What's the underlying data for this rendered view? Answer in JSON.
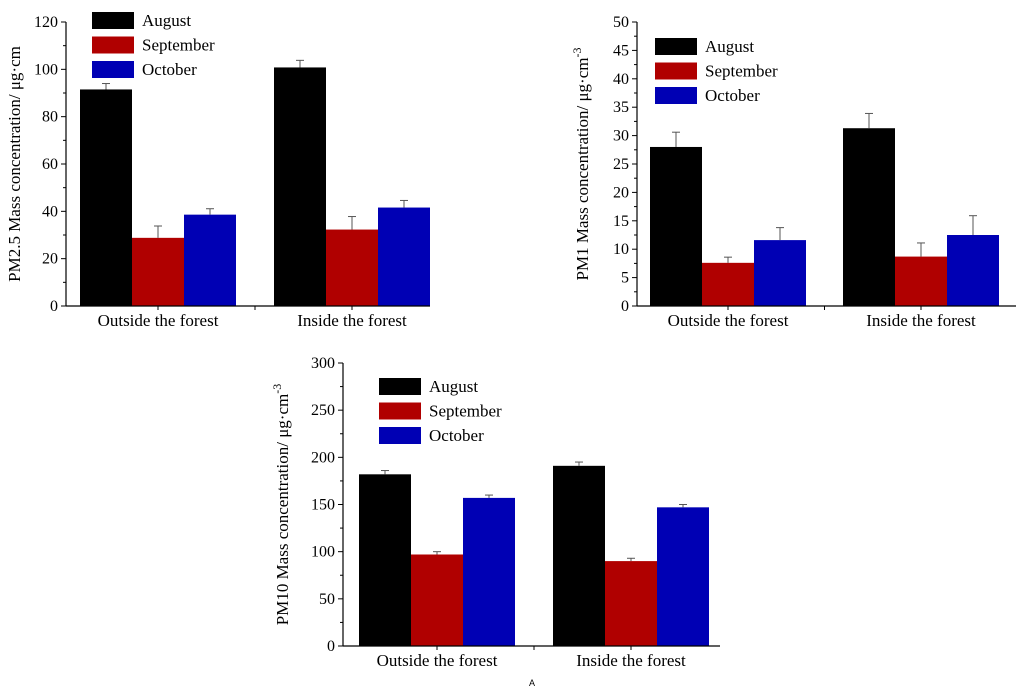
{
  "figure_caption": "A",
  "chart_data": [
    {
      "type": "bar",
      "title": "",
      "xlabel": "",
      "ylabel": "PM2.5 Mass concentration/ μg·cm",
      "categories": [
        "Outside the forest",
        "Inside the forest"
      ],
      "ylim": [
        0,
        120
      ],
      "yticks": [
        0,
        20,
        40,
        60,
        80,
        100,
        120
      ],
      "legend_position": "top-left",
      "series": [
        {
          "name": "August",
          "color": "#000000",
          "values": [
            91.5,
            100.8
          ],
          "errors": [
            2.5,
            3.0
          ]
        },
        {
          "name": "September",
          "color": "#b00000",
          "values": [
            28.8,
            32.3
          ],
          "errors": [
            5.0,
            5.5
          ]
        },
        {
          "name": "October",
          "color": "#0000b4",
          "values": [
            38.6,
            41.6
          ],
          "errors": [
            2.5,
            3.0
          ]
        }
      ]
    },
    {
      "type": "bar",
      "title": "",
      "xlabel": "",
      "ylabel": "PM1 Mass concentration/ μg·cm",
      "ylabel_sup": "-3",
      "categories": [
        "Outside the forest",
        "Inside the forest"
      ],
      "ylim": [
        0,
        50
      ],
      "yticks": [
        0,
        5,
        10,
        15,
        20,
        25,
        30,
        35,
        40,
        45,
        50
      ],
      "legend_position": "top-left",
      "series": [
        {
          "name": "August",
          "color": "#000000",
          "values": [
            28.0,
            31.3
          ],
          "errors": [
            2.6,
            2.6
          ]
        },
        {
          "name": "September",
          "color": "#b00000",
          "values": [
            7.6,
            8.7
          ],
          "errors": [
            1.0,
            2.4
          ]
        },
        {
          "name": "October",
          "color": "#0000b4",
          "values": [
            11.6,
            12.5
          ],
          "errors": [
            2.2,
            3.4
          ]
        }
      ]
    },
    {
      "type": "bar",
      "title": "",
      "xlabel": "",
      "ylabel": "PM10 Mass concentration/ μg·cm",
      "ylabel_sup": "-3",
      "categories": [
        "Outside the forest",
        "Inside the forest"
      ],
      "ylim": [
        0,
        300
      ],
      "yticks": [
        0,
        50,
        100,
        150,
        200,
        250,
        300
      ],
      "legend_position": "top-left",
      "series": [
        {
          "name": "August",
          "color": "#000000",
          "values": [
            182,
            191
          ],
          "errors": [
            4,
            4
          ]
        },
        {
          "name": "September",
          "color": "#b00000",
          "values": [
            97,
            90
          ],
          "errors": [
            3,
            3
          ]
        },
        {
          "name": "October",
          "color": "#0000b4",
          "values": [
            157,
            147
          ],
          "errors": [
            3,
            3
          ]
        }
      ]
    }
  ]
}
